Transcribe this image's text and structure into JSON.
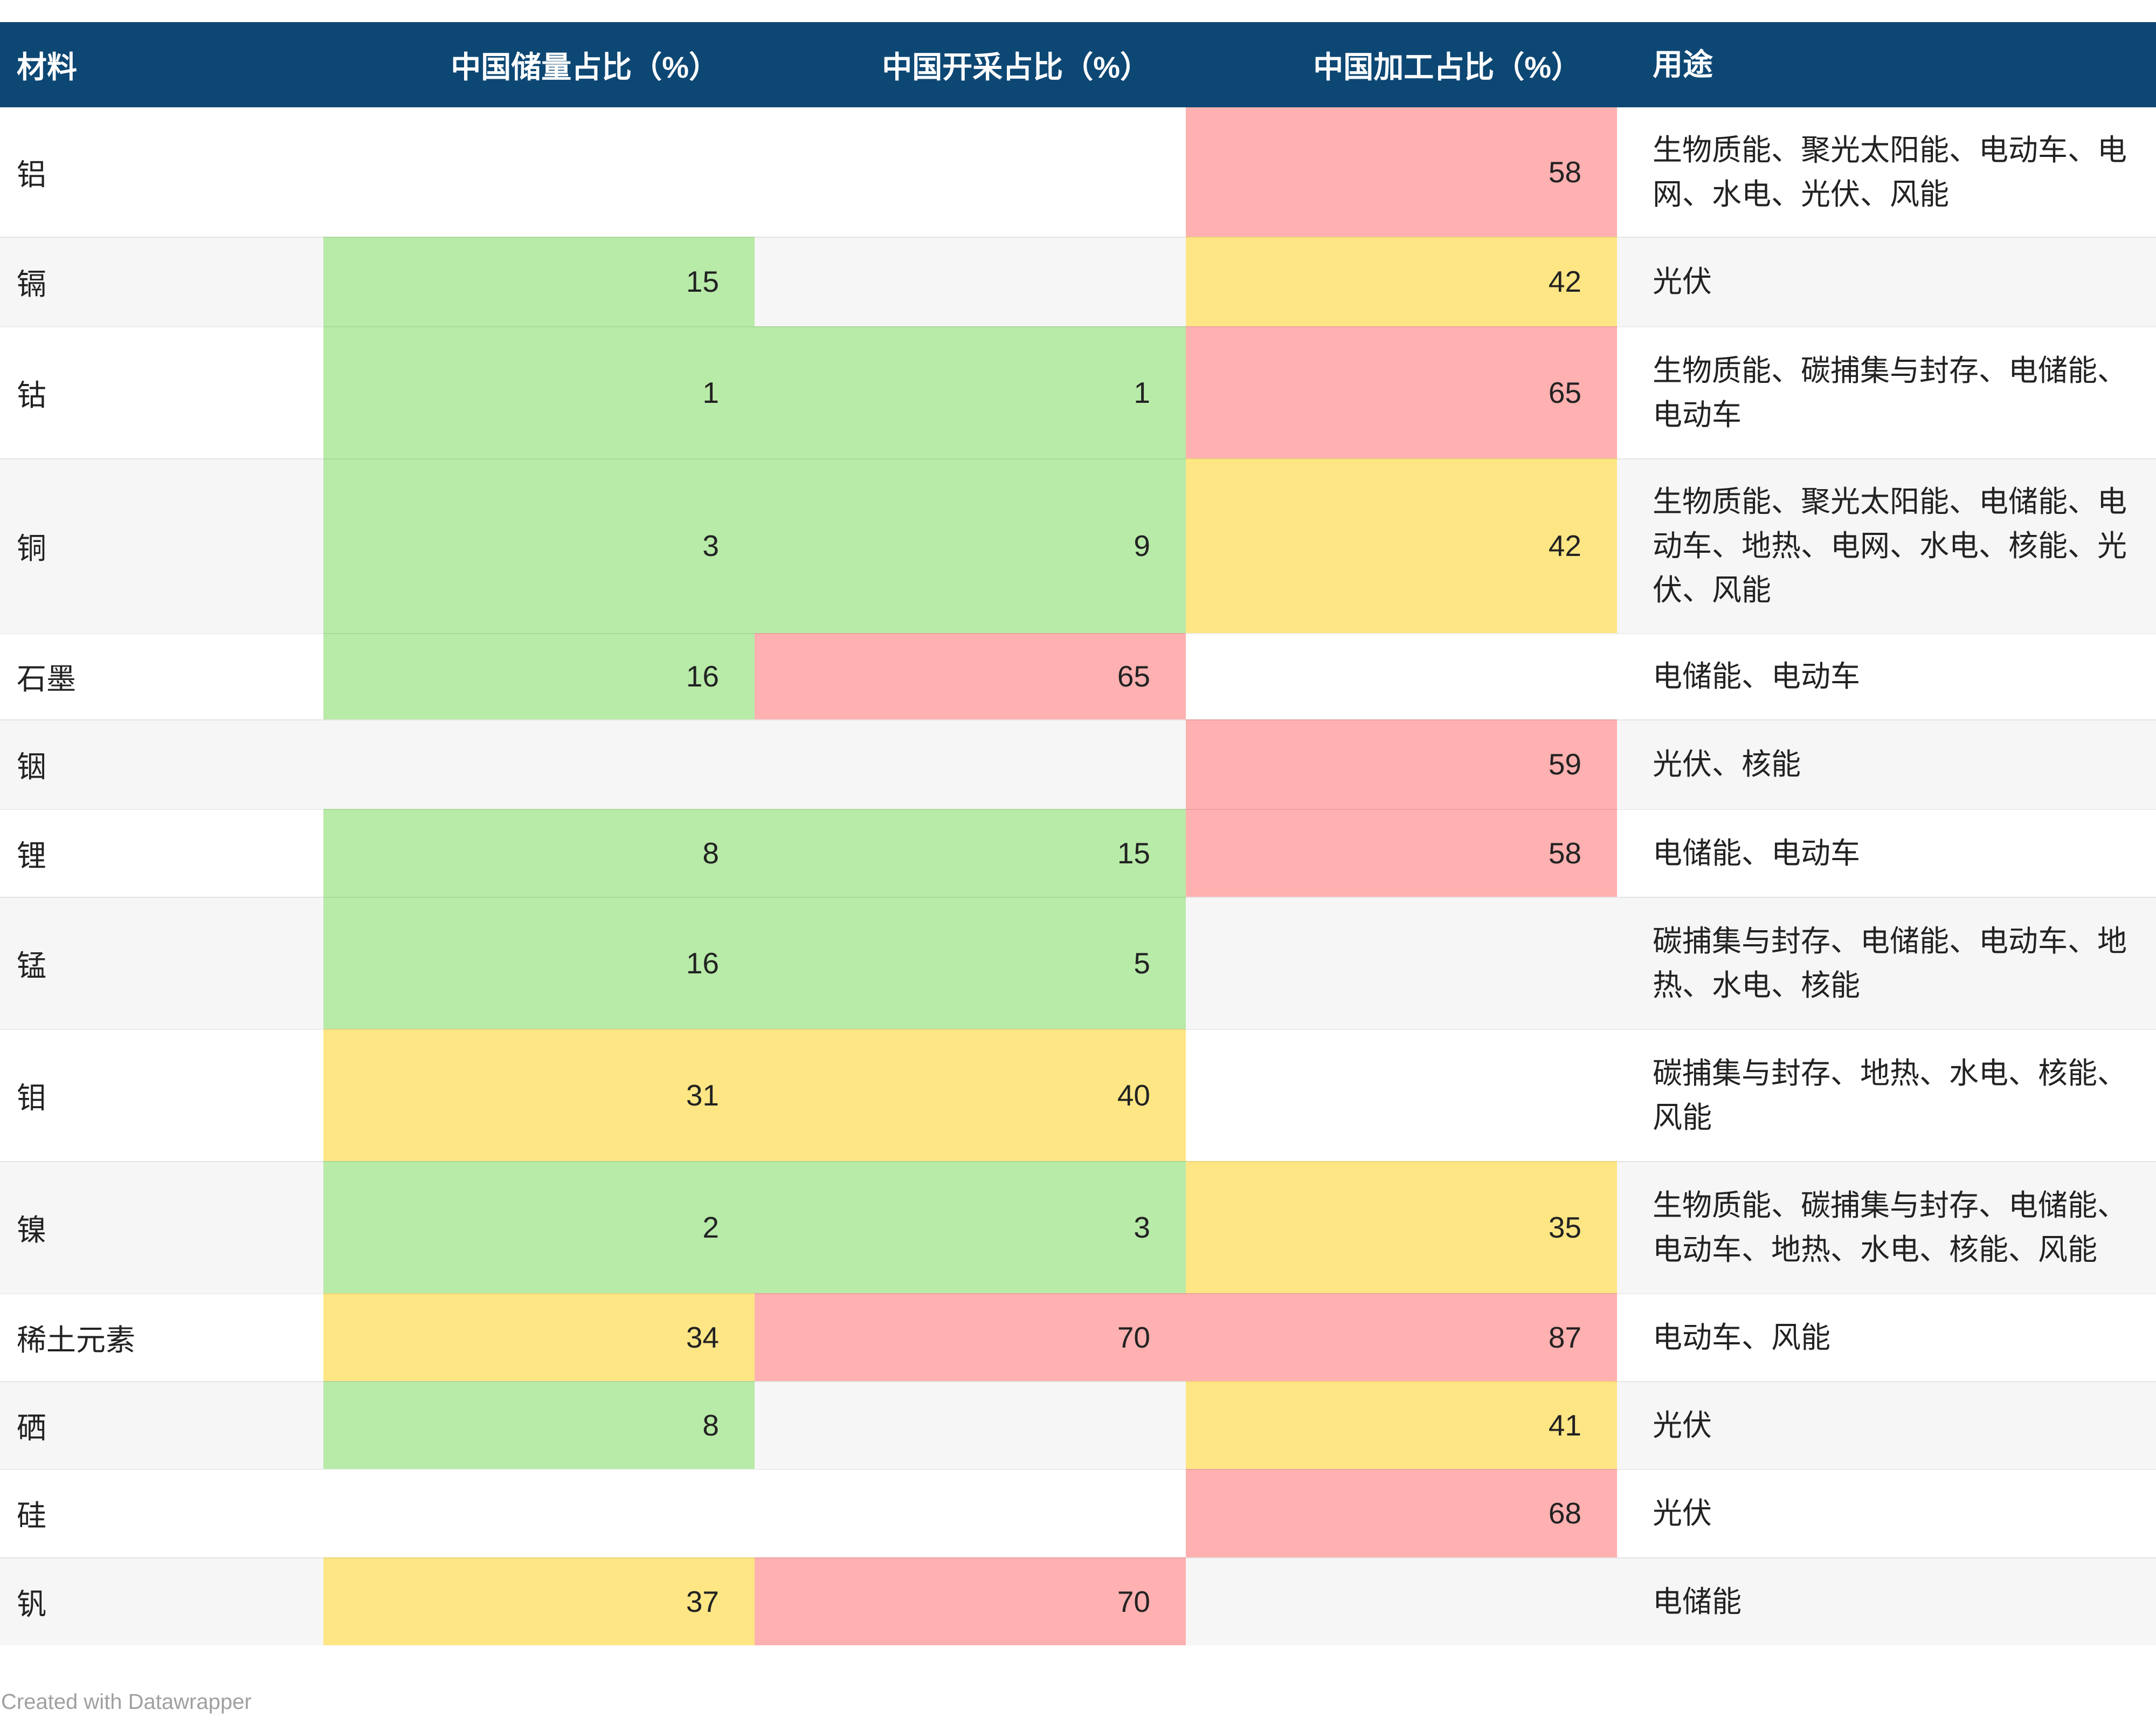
{
  "chart_data": {
    "type": "table",
    "columns": [
      "材料",
      "中国储量占比（%）",
      "中国开采占比（%）",
      "中国加工占比（%）",
      "用途"
    ],
    "rows": [
      {
        "material": "铝",
        "reserves": null,
        "mining": null,
        "processing": 58,
        "uses": "生物质能、聚光太阳能、电动车、电网、水电、光伏、风能"
      },
      {
        "material": "镉",
        "reserves": 15,
        "mining": null,
        "processing": 42,
        "uses": "光伏"
      },
      {
        "material": "钴",
        "reserves": 1,
        "mining": 1,
        "processing": 65,
        "uses": "生物质能、碳捕集与封存、电储能、电动车"
      },
      {
        "material": "铜",
        "reserves": 3,
        "mining": 9,
        "processing": 42,
        "uses": "生物质能、聚光太阳能、电储能、电动车、地热、电网、水电、核能、光伏、风能"
      },
      {
        "material": "石墨",
        "reserves": 16,
        "mining": 65,
        "processing": null,
        "uses": "电储能、电动车"
      },
      {
        "material": "铟",
        "reserves": null,
        "mining": null,
        "processing": 59,
        "uses": "光伏、核能"
      },
      {
        "material": "锂",
        "reserves": 8,
        "mining": 15,
        "processing": 58,
        "uses": "电储能、电动车"
      },
      {
        "material": "锰",
        "reserves": 16,
        "mining": 5,
        "processing": null,
        "uses": "碳捕集与封存、电储能、电动车、地热、水电、核能"
      },
      {
        "material": "钼",
        "reserves": 31,
        "mining": 40,
        "processing": null,
        "uses": "碳捕集与封存、地热、水电、核能、风能"
      },
      {
        "material": "镍",
        "reserves": 2,
        "mining": 3,
        "processing": 35,
        "uses": "生物质能、碳捕集与封存、电储能、电动车、地热、水电、核能、风能"
      },
      {
        "material": "稀土元素",
        "reserves": 34,
        "mining": 70,
        "processing": 87,
        "uses": "电动车、风能"
      },
      {
        "material": "硒",
        "reserves": 8,
        "mining": null,
        "processing": 41,
        "uses": "光伏"
      },
      {
        "material": "硅",
        "reserves": null,
        "mining": null,
        "processing": 68,
        "uses": "光伏"
      },
      {
        "material": "钒",
        "reserves": 37,
        "mining": 70,
        "processing": null,
        "uses": "电储能"
      }
    ]
  },
  "colors": {
    "header_bg": "#0d4774",
    "header_text": "#ffffff",
    "low": "#b8eaa8",
    "medium": "#fee685",
    "high": "#ffb0b0",
    "row_alt": "#f6f6f6"
  },
  "footer": {
    "credit": "Created with Datawrapper"
  }
}
